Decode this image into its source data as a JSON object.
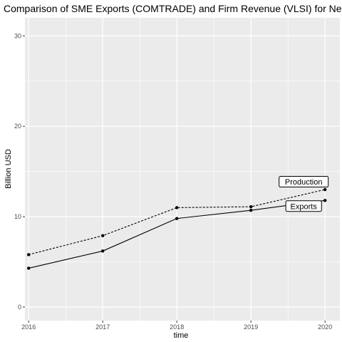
{
  "chart_data": {
    "type": "line",
    "title": "Comparison of SME Exports (COMTRADE) and Firm Revenue (VLSI) for Neth",
    "xlabel": "time",
    "ylabel": "Billion USD",
    "x": [
      2016,
      2017,
      2018,
      2019,
      2020
    ],
    "x_tick_labels": [
      "2016",
      "2017",
      "2018",
      "2019",
      "2020"
    ],
    "xlim": [
      2015.95,
      2020.2
    ],
    "ylim": [
      -1.5,
      32
    ],
    "y_ticks": [
      0,
      10,
      20,
      30
    ],
    "y_tick_labels": [
      "0",
      "10",
      "20",
      "30"
    ],
    "grid": true,
    "panel_background": "#ebebeb",
    "grid_color": "#ffffff",
    "series": [
      {
        "name": "Production",
        "line_style": "dashed",
        "color": "#000000",
        "values": [
          5.8,
          7.9,
          11.0,
          11.1,
          13.0
        ]
      },
      {
        "name": "Exports",
        "line_style": "solid",
        "color": "#000000",
        "values": [
          4.3,
          6.2,
          9.8,
          10.7,
          11.8
        ]
      }
    ],
    "annotations": [
      {
        "label": "Production",
        "series": "Production"
      },
      {
        "label": "Exports",
        "series": "Exports"
      }
    ]
  }
}
